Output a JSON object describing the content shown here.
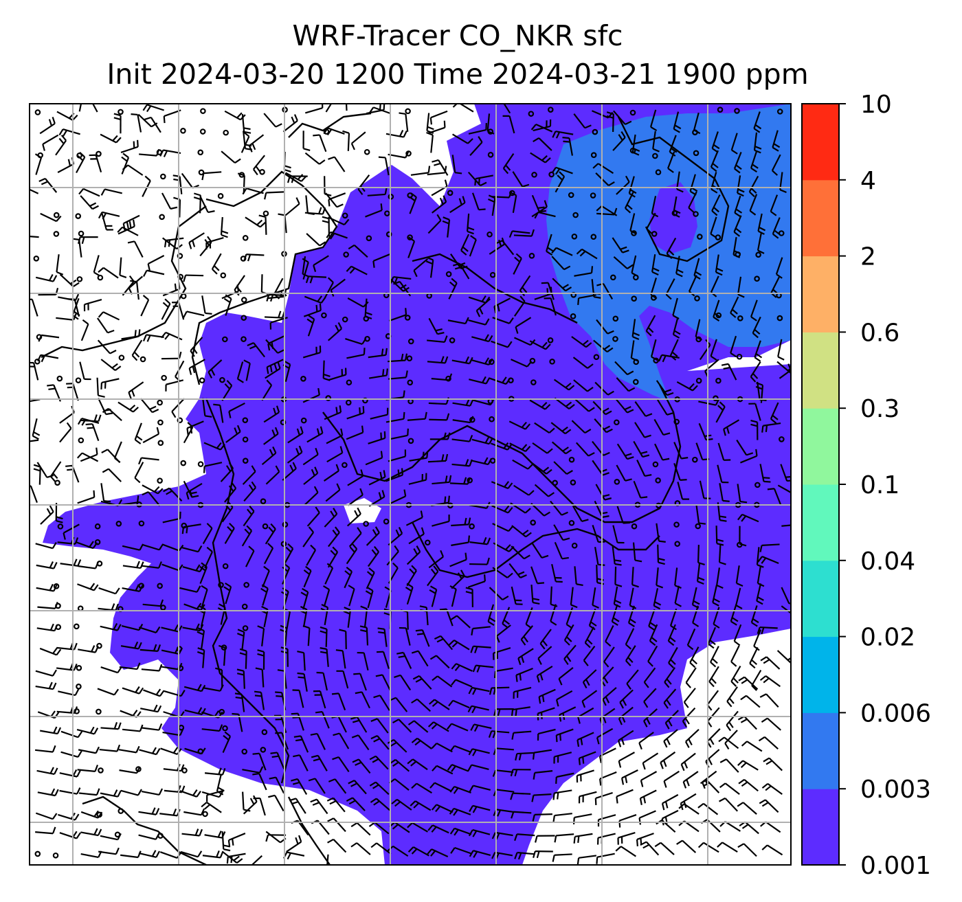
{
  "chart_data": {
    "type": "heatmap",
    "title_line1": "WRF-Tracer CO_NKR sfc",
    "title_line2": "Init 2024-03-20 1200 Time 2024-03-21 1900 ppm",
    "xlabel": "",
    "ylabel": "",
    "grid": true,
    "colorbar": {
      "placement": "right",
      "levels": [
        "0.001",
        "0.003",
        "0.006",
        "0.02",
        "0.04",
        "0.1",
        "0.3",
        "0.6",
        "2",
        "4",
        "10"
      ],
      "colors": [
        "#5d2cff",
        "#3279f0",
        "#00b4ea",
        "#2ddfd0",
        "#61f8bc",
        "#90f79d",
        "#d0e183",
        "#feb066",
        "#ff7038",
        "#ff2a13"
      ]
    },
    "regions": [
      {
        "name": "main-plume",
        "level_index": 0
      },
      {
        "name": "northeast-high",
        "level_index": 1
      },
      {
        "name": "northeast-pocket",
        "level_index": 0
      }
    ],
    "overlays": [
      "wind-barbs",
      "coastlines",
      "borders",
      "calm-circles"
    ]
  }
}
